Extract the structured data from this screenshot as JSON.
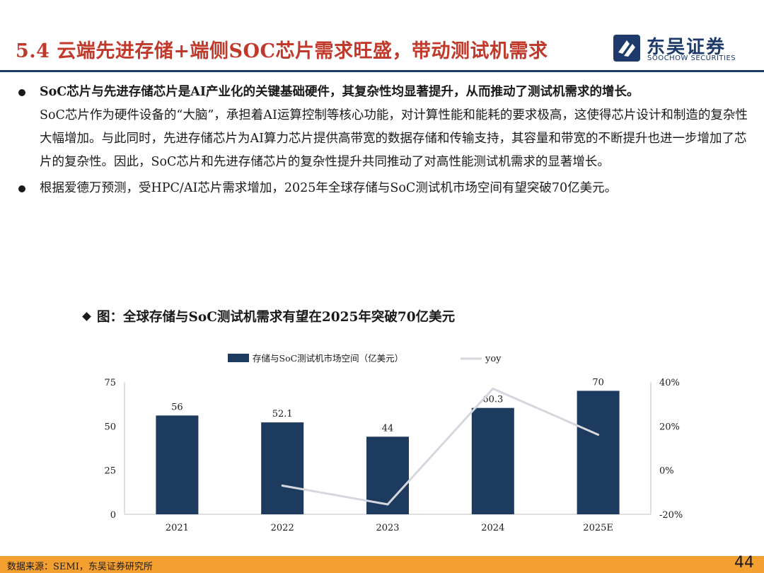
{
  "header": {
    "title": "5.4 云端先进存储+端侧SOC芯片需求旺盛，带动测试机需求",
    "logo": {
      "name_cn": "东吴证券",
      "name_en": "SOOCHOW SECURITIES",
      "icon": "soochow-logo-icon",
      "color": "#1d3a6b"
    }
  },
  "bullets": [
    {
      "lead": "SoC芯片与先进存储芯片是AI产业化的关键基础硬件，其复杂性均显著提升，从而推动了测试机需求的增长。",
      "body": "SoC芯片作为硬件设备的“大脑”，承担着AI运算控制等核心功能，对计算性能和能耗的要求极高，这使得芯片设计和制造的复杂性大幅增加。与此同时，先进存储芯片为AI算力芯片提供高带宽的数据存储和传输支持，其容量和带宽的不断提升也进一步增加了芯片的复杂性。因此，SoC芯片和先进存储芯片的复杂性提升共同推动了对高性能测试机需求的显著增长。"
    },
    {
      "lead": "",
      "body": "根据爱德万预测，受HPC/AI芯片需求增加，2025年全球存储与SoC测试机市场空间有望突破70亿美元。"
    }
  ],
  "figure": {
    "title": "图：全球存储与SoC测试机需求有望在2025年突破70亿美元"
  },
  "chart_data": {
    "type": "bar",
    "categories": [
      "2021",
      "2022",
      "2023",
      "2024",
      "2025E"
    ],
    "series": [
      {
        "name": "存储与SoC测试机市场空间（亿美元）",
        "type": "bar",
        "axis": "left",
        "values": [
          56,
          52.1,
          44,
          60.3,
          70
        ],
        "labels": [
          "56",
          "52.1",
          "44",
          "60.3",
          "70"
        ],
        "color": "#1d3a5f"
      },
      {
        "name": "yoy",
        "type": "line",
        "axis": "right",
        "values": [
          null,
          -7.0,
          -15.5,
          37.0,
          16.1
        ],
        "color": "#d4d8de"
      }
    ],
    "ylim_left": [
      0,
      75
    ],
    "yticks_left": [
      0,
      25,
      50,
      75
    ],
    "ylim_right": [
      -20,
      40
    ],
    "yticks_right": [
      "-20%",
      "0%",
      "20%",
      "40%"
    ],
    "legend": "top-center",
    "grid": false
  },
  "footer": {
    "source": "数据来源：SEMI，东吴证券研究所",
    "page": "44",
    "color": "#f4a030"
  }
}
